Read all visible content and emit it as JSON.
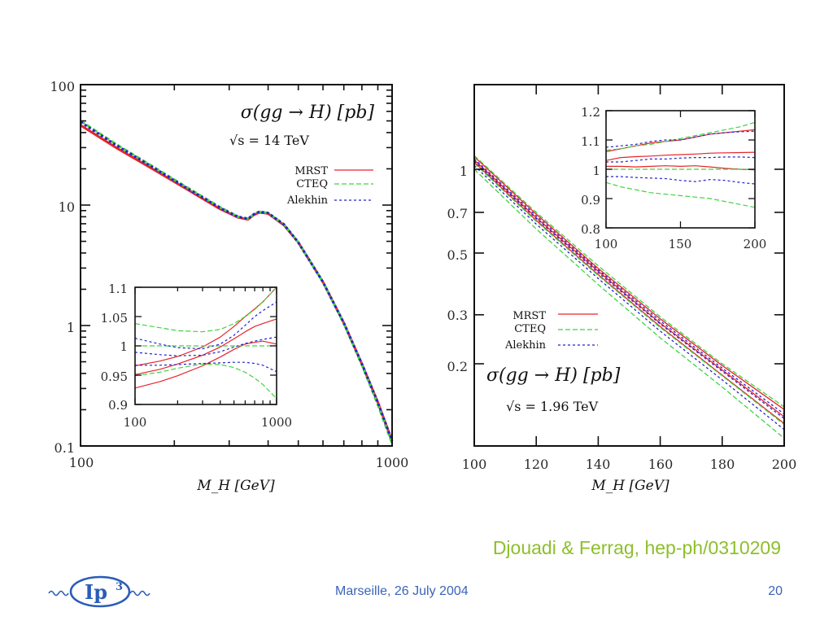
{
  "slide": {
    "citation": "Djouadi & Ferrag, hep-ph/0310209",
    "footer_center": "Marseille, 26 July 2004",
    "page_number": "20",
    "logo_text": "Ip",
    "logo_superscript": "3",
    "colors": {
      "mrst": "#e8242b",
      "cteq": "#3fd43f",
      "alekhin": "#2222cc",
      "citation": "#8dbf2a",
      "footer": "#3a64b8"
    }
  },
  "chart_data": [
    {
      "id": "lhc",
      "type": "line",
      "title": "σ(gg → H) [pb]",
      "subtitle": "√s = 14 TeV",
      "xlabel": "M_H [GeV]",
      "ylabel": "",
      "xscale": "log",
      "yscale": "log",
      "xlim": [
        100,
        1000
      ],
      "ylim": [
        0.1,
        100
      ],
      "x_ticks": [
        "100",
        "1000"
      ],
      "y_ticks": [
        "0.1",
        "1",
        "10",
        "100"
      ],
      "legend": [
        "MRST",
        "CTEQ",
        "Alekhin"
      ],
      "legend_position": "top-right",
      "x": [
        100,
        130,
        170,
        220,
        280,
        320,
        345,
        360,
        375,
        400,
        450,
        500,
        600,
        700,
        800,
        900,
        1000
      ],
      "series": [
        {
          "name": "MRST",
          "style": "solid",
          "values": [
            46,
            30,
            20,
            13.5,
            9.3,
            7.9,
            7.6,
            8.3,
            8.7,
            8.5,
            6.8,
            4.9,
            2.3,
            1.05,
            0.48,
            0.23,
            0.11
          ]
        },
        {
          "name": "CTEQ",
          "style": "dashed",
          "values": [
            50,
            32,
            21,
            14,
            9.6,
            8.0,
            7.7,
            8.4,
            8.8,
            8.6,
            6.9,
            4.9,
            2.3,
            1.04,
            0.47,
            0.22,
            0.105
          ]
        },
        {
          "name": "Alekhin",
          "style": "dotted",
          "values": [
            49,
            31.5,
            20.7,
            13.8,
            9.5,
            8.0,
            7.7,
            8.4,
            8.8,
            8.6,
            6.9,
            4.9,
            2.3,
            1.05,
            0.48,
            0.23,
            0.11
          ]
        }
      ],
      "inset": {
        "xscale": "log",
        "xlim": [
          100,
          1000
        ],
        "ylim": [
          0.9,
          1.1
        ],
        "x_ticks": [
          "100",
          "1000"
        ],
        "y_ticks": [
          "0.9",
          "0.95",
          "1",
          "1.05",
          "1.1"
        ],
        "x": [
          100,
          150,
          200,
          300,
          400,
          500,
          600,
          700,
          800,
          1000
        ],
        "series": [
          {
            "name": "MRST upper",
            "style": "solid",
            "values": [
              0.966,
              0.974,
              0.982,
              0.998,
              1.015,
              1.033,
              1.05,
              1.063,
              1.075,
              1.1
            ]
          },
          {
            "name": "MRST central",
            "style": "solid",
            "values": [
              0.951,
              0.96,
              0.969,
              0.984,
              0.998,
              1.012,
              1.024,
              1.033,
              1.038,
              1.046
            ]
          },
          {
            "name": "MRST lower",
            "style": "solid",
            "values": [
              0.928,
              0.939,
              0.949,
              0.966,
              0.981,
              0.994,
              1.003,
              1.006,
              1.008,
              1.003
            ]
          },
          {
            "name": "CTEQ central",
            "style": "dashed",
            "values": [
              1.0,
              1.0,
              1.0,
              1.0,
              1.0,
              1.0,
              1.0,
              1.0,
              1.0,
              1.0
            ]
          },
          {
            "name": "CTEQ upper",
            "style": "dashed",
            "values": [
              1.038,
              1.031,
              1.026,
              1.024,
              1.028,
              1.038,
              1.05,
              1.062,
              1.075,
              1.1
            ]
          },
          {
            "name": "CTEQ lower",
            "style": "dashed",
            "values": [
              0.949,
              0.955,
              0.962,
              0.969,
              0.968,
              0.963,
              0.955,
              0.945,
              0.934,
              0.91
            ]
          },
          {
            "name": "Alekhin upper",
            "style": "dotted",
            "values": [
              1.013,
              1.003,
              0.997,
              0.995,
              1.003,
              1.018,
              1.035,
              1.05,
              1.06,
              1.075
            ]
          },
          {
            "name": "Alekhin central",
            "style": "dotted",
            "values": [
              0.989,
              0.985,
              0.983,
              0.984,
              0.99,
              0.998,
              1.004,
              1.008,
              1.011,
              1.015
            ]
          },
          {
            "name": "Alekhin lower",
            "style": "dotted",
            "values": [
              0.967,
              0.967,
              0.968,
              0.97,
              0.971,
              0.972,
              0.972,
              0.97,
              0.967,
              0.956
            ]
          }
        ]
      }
    },
    {
      "id": "tevatron",
      "type": "line",
      "title": "σ(gg → H) [pb]",
      "subtitle": "√s = 1.96 TeV",
      "xlabel": "M_H [GeV]",
      "ylabel": "",
      "xscale": "linear",
      "yscale": "log",
      "xlim": [
        100,
        200
      ],
      "ylim": [
        0.1,
        2.0
      ],
      "x_ticks": [
        "100",
        "120",
        "140",
        "160",
        "180",
        "200"
      ],
      "y_ticks": [
        "0.2",
        "0.3",
        "0.5",
        "0.7",
        "1"
      ],
      "legend": [
        "MRST",
        "CTEQ",
        "Alekhin"
      ],
      "legend_position": "middle-left",
      "x": [
        100,
        120,
        140,
        160,
        180,
        200
      ],
      "series": [
        {
          "name": "MRST upper",
          "style": "solid",
          "values": [
            1.11,
            0.69,
            0.44,
            0.29,
            0.197,
            0.137
          ]
        },
        {
          "name": "MRST central",
          "style": "solid",
          "values": [
            1.08,
            0.67,
            0.43,
            0.28,
            0.19,
            0.129
          ]
        },
        {
          "name": "MRST lower",
          "style": "solid",
          "values": [
            1.06,
            0.655,
            0.418,
            0.272,
            0.182,
            0.122
          ]
        },
        {
          "name": "CTEQ upper",
          "style": "dashed",
          "values": [
            1.12,
            0.7,
            0.45,
            0.295,
            0.2,
            0.14
          ]
        },
        {
          "name": "CTEQ central",
          "style": "dashed",
          "values": [
            1.05,
            0.65,
            0.415,
            0.27,
            0.181,
            0.121
          ]
        },
        {
          "name": "CTEQ lower",
          "style": "dashed",
          "values": [
            1.0,
            0.61,
            0.385,
            0.248,
            0.165,
            0.108
          ]
        },
        {
          "name": "Alekhin upper",
          "style": "dotted",
          "values": [
            1.09,
            0.68,
            0.435,
            0.285,
            0.193,
            0.132
          ]
        },
        {
          "name": "Alekhin central",
          "style": "dotted",
          "values": [
            1.07,
            0.665,
            0.425,
            0.278,
            0.188,
            0.127
          ]
        },
        {
          "name": "Alekhin lower",
          "style": "dotted",
          "values": [
            1.03,
            0.635,
            0.405,
            0.262,
            0.175,
            0.116
          ]
        }
      ],
      "inset": {
        "xscale": "linear",
        "xlim": [
          100,
          200
        ],
        "ylim": [
          0.8,
          1.2
        ],
        "x_ticks": [
          "100",
          "150",
          "200"
        ],
        "y_ticks": [
          "0.8",
          "0.9",
          "1",
          "1.1",
          "1.2"
        ],
        "x": [
          100,
          110,
          120,
          130,
          140,
          150,
          160,
          170,
          180,
          190,
          200
        ],
        "series": [
          {
            "name": "MRST upper",
            "style": "solid",
            "values": [
              1.06,
              1.07,
              1.08,
              1.09,
              1.095,
              1.1,
              1.11,
              1.12,
              1.125,
              1.13,
              1.135
            ]
          },
          {
            "name": "MRST central",
            "style": "solid",
            "values": [
              1.03,
              1.04,
              1.043,
              1.045,
              1.048,
              1.05,
              1.052,
              1.055,
              1.056,
              1.057,
              1.058
            ]
          },
          {
            "name": "MRST lower",
            "style": "solid",
            "values": [
              1.01,
              1.01,
              1.008,
              1.01,
              1.012,
              1.01,
              1.012,
              1.008,
              1.003,
              1.0,
              0.998
            ]
          },
          {
            "name": "CTEQ central",
            "style": "dashed",
            "values": [
              1.0,
              1.0,
              1.0,
              1.0,
              1.0,
              1.0,
              1.0,
              1.0,
              1.0,
              1.0,
              1.0
            ]
          },
          {
            "name": "CTEQ upper",
            "style": "dashed",
            "values": [
              1.065,
              1.07,
              1.08,
              1.085,
              1.095,
              1.105,
              1.115,
              1.125,
              1.135,
              1.145,
              1.16
            ]
          },
          {
            "name": "CTEQ lower",
            "style": "dashed",
            "values": [
              0.955,
              0.94,
              0.93,
              0.92,
              0.915,
              0.91,
              0.905,
              0.9,
              0.89,
              0.88,
              0.87
            ]
          },
          {
            "name": "Alekhin upper",
            "style": "dotted",
            "values": [
              1.075,
              1.08,
              1.085,
              1.095,
              1.1,
              1.1,
              1.11,
              1.12,
              1.125,
              1.128,
              1.13
            ]
          },
          {
            "name": "Alekhin central",
            "style": "dotted",
            "values": [
              1.025,
              1.025,
              1.03,
              1.035,
              1.035,
              1.038,
              1.04,
              1.04,
              1.042,
              1.042,
              1.04
            ]
          },
          {
            "name": "Alekhin lower",
            "style": "dotted",
            "values": [
              0.975,
              0.975,
              0.972,
              0.97,
              0.968,
              0.962,
              0.958,
              0.965,
              0.962,
              0.955,
              0.95
            ]
          }
        ]
      }
    }
  ]
}
